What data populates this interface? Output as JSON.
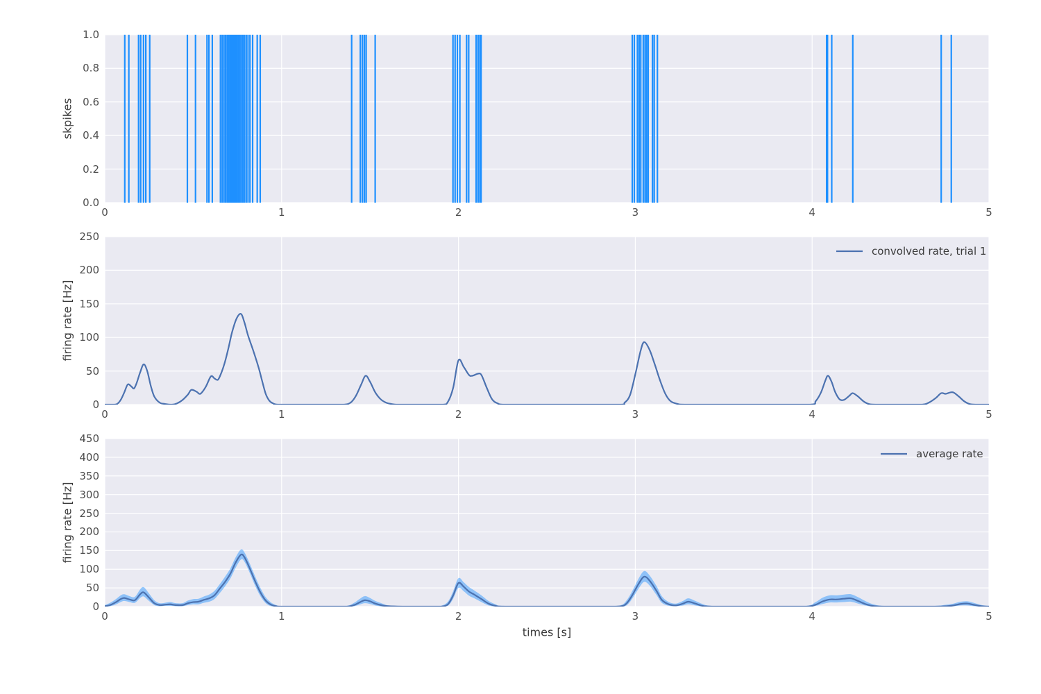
{
  "figure": {
    "background": "#ffffff",
    "axes_background": "#eaeaf2",
    "grid_color": "#ffffff",
    "tick_label_color": "#4d4d4d",
    "axis_label_color": "#3b3b3b",
    "legend_text_color": "#3b3b3b"
  },
  "chart_data": [
    {
      "id": "spike_raster",
      "type": "scatter",
      "mark": "event-vlines",
      "title": "",
      "xlabel": "",
      "ylabel": "skpikes",
      "xlim": [
        0,
        5
      ],
      "ylim": [
        0.0,
        1.0
      ],
      "xticks": [
        "0",
        "1",
        "2",
        "3",
        "4",
        "5"
      ],
      "yticks": [
        "0.0",
        "0.2",
        "0.4",
        "0.6",
        "0.8",
        "1.0"
      ],
      "grid": true,
      "line_color": "#1e90ff",
      "spike_times": [
        0.113,
        0.136,
        0.191,
        0.203,
        0.219,
        0.232,
        0.254,
        0.467,
        0.513,
        0.578,
        0.589,
        0.608,
        0.654,
        0.664,
        0.674,
        0.683,
        0.692,
        0.7,
        0.708,
        0.716,
        0.724,
        0.732,
        0.74,
        0.748,
        0.756,
        0.764,
        0.772,
        0.781,
        0.79,
        0.8,
        0.81,
        0.821,
        0.836,
        0.862,
        0.879,
        1.396,
        1.445,
        1.457,
        1.468,
        1.478,
        1.529,
        1.969,
        1.981,
        1.994,
        2.008,
        2.046,
        2.058,
        2.1,
        2.111,
        2.121,
        2.128,
        2.983,
        2.995,
        3.012,
        3.022,
        3.031,
        3.045,
        3.055,
        3.064,
        3.073,
        3.097,
        3.107,
        3.125,
        4.082,
        4.087,
        4.111,
        4.23,
        4.73,
        4.787
      ]
    },
    {
      "id": "convolved_rate_trial1",
      "type": "line",
      "title": "",
      "xlabel": "",
      "ylabel": "firing rate [Hz]",
      "xlim": [
        0,
        5
      ],
      "ylim": [
        0,
        250
      ],
      "xticks": [
        "0",
        "1",
        "2",
        "3",
        "4",
        "5"
      ],
      "yticks": [
        "0",
        "50",
        "100",
        "150",
        "200",
        "250"
      ],
      "grid": true,
      "legend": {
        "label": "convolved rate, trial 1",
        "position": "upper right"
      },
      "line_color": "#4c72b0",
      "points": [
        [
          0,
          0
        ],
        [
          0.05,
          0
        ],
        [
          0.07,
          1
        ],
        [
          0.09,
          7
        ],
        [
          0.11,
          18
        ],
        [
          0.13,
          30
        ],
        [
          0.15,
          27
        ],
        [
          0.165,
          24
        ],
        [
          0.18,
          32
        ],
        [
          0.2,
          48
        ],
        [
          0.22,
          60
        ],
        [
          0.24,
          50
        ],
        [
          0.26,
          28
        ],
        [
          0.28,
          12
        ],
        [
          0.31,
          3
        ],
        [
          0.34,
          1
        ],
        [
          0.38,
          0
        ],
        [
          0.41,
          2
        ],
        [
          0.44,
          7
        ],
        [
          0.47,
          15
        ],
        [
          0.49,
          22
        ],
        [
          0.52,
          19
        ],
        [
          0.54,
          16
        ],
        [
          0.57,
          26
        ],
        [
          0.6,
          42
        ],
        [
          0.62,
          39
        ],
        [
          0.64,
          37
        ],
        [
          0.66,
          48
        ],
        [
          0.68,
          64
        ],
        [
          0.7,
          85
        ],
        [
          0.72,
          108
        ],
        [
          0.745,
          128
        ],
        [
          0.77,
          135
        ],
        [
          0.79,
          122
        ],
        [
          0.81,
          103
        ],
        [
          0.84,
          80
        ],
        [
          0.87,
          55
        ],
        [
          0.89,
          35
        ],
        [
          0.91,
          16
        ],
        [
          0.93,
          6
        ],
        [
          0.95,
          2
        ],
        [
          0.98,
          0
        ],
        [
          1.1,
          0
        ],
        [
          1.25,
          0
        ],
        [
          1.35,
          0
        ],
        [
          1.39,
          3
        ],
        [
          1.42,
          13
        ],
        [
          1.45,
          30
        ],
        [
          1.475,
          43
        ],
        [
          1.5,
          34
        ],
        [
          1.53,
          18
        ],
        [
          1.56,
          8
        ],
        [
          1.59,
          3
        ],
        [
          1.62,
          1
        ],
        [
          1.66,
          0
        ],
        [
          1.78,
          0
        ],
        [
          1.91,
          0
        ],
        [
          1.94,
          4
        ],
        [
          1.97,
          25
        ],
        [
          2.0,
          66
        ],
        [
          2.03,
          56
        ],
        [
          2.06,
          44
        ],
        [
          2.08,
          43
        ],
        [
          2.11,
          46
        ],
        [
          2.13,
          44
        ],
        [
          2.16,
          25
        ],
        [
          2.19,
          8
        ],
        [
          2.22,
          2
        ],
        [
          2.26,
          0
        ],
        [
          2.45,
          0
        ],
        [
          2.65,
          0
        ],
        [
          2.91,
          0
        ],
        [
          2.94,
          3
        ],
        [
          2.97,
          14
        ],
        [
          3.0,
          45
        ],
        [
          3.03,
          80
        ],
        [
          3.05,
          93
        ],
        [
          3.08,
          82
        ],
        [
          3.11,
          60
        ],
        [
          3.14,
          36
        ],
        [
          3.17,
          16
        ],
        [
          3.2,
          5
        ],
        [
          3.24,
          1
        ],
        [
          3.28,
          0
        ],
        [
          3.5,
          0
        ],
        [
          3.75,
          0
        ],
        [
          3.99,
          0
        ],
        [
          4.02,
          5
        ],
        [
          4.05,
          18
        ],
        [
          4.075,
          36
        ],
        [
          4.09,
          43
        ],
        [
          4.11,
          34
        ],
        [
          4.13,
          19
        ],
        [
          4.155,
          8
        ],
        [
          4.18,
          7
        ],
        [
          4.21,
          13
        ],
        [
          4.23,
          17
        ],
        [
          4.26,
          12
        ],
        [
          4.29,
          5
        ],
        [
          4.32,
          1
        ],
        [
          4.36,
          0
        ],
        [
          4.5,
          0
        ],
        [
          4.62,
          0
        ],
        [
          4.66,
          3
        ],
        [
          4.7,
          10
        ],
        [
          4.73,
          17
        ],
        [
          4.755,
          16
        ],
        [
          4.78,
          18
        ],
        [
          4.8,
          18
        ],
        [
          4.83,
          12
        ],
        [
          4.86,
          5
        ],
        [
          4.89,
          1
        ],
        [
          4.93,
          0
        ],
        [
          5,
          0
        ]
      ]
    },
    {
      "id": "average_rate",
      "type": "area",
      "title": "",
      "xlabel": "times [s]",
      "ylabel": "firing rate [Hz]",
      "xlim": [
        0,
        5
      ],
      "ylim": [
        0,
        450
      ],
      "xticks": [
        "0",
        "1",
        "2",
        "3",
        "4",
        "5"
      ],
      "yticks": [
        "0",
        "50",
        "100",
        "150",
        "200",
        "250",
        "300",
        "350",
        "400",
        "450"
      ],
      "grid": true,
      "legend": {
        "label": "average rate",
        "position": "upper right"
      },
      "line_color": "#4c72b0",
      "band_color": "rgba(30,144,255,0.45)",
      "points_format": [
        "t",
        "mean",
        "lower",
        "upper"
      ],
      "points": [
        [
          0,
          1,
          0,
          4
        ],
        [
          0.03,
          4,
          1,
          10
        ],
        [
          0.06,
          11,
          5,
          19
        ],
        [
          0.09,
          20,
          12,
          30
        ],
        [
          0.11,
          23,
          15,
          33
        ],
        [
          0.14,
          19,
          12,
          28
        ],
        [
          0.17,
          17,
          10,
          26
        ],
        [
          0.2,
          33,
          23,
          46
        ],
        [
          0.22,
          38,
          27,
          52
        ],
        [
          0.25,
          24,
          15,
          35
        ],
        [
          0.28,
          9,
          4,
          17
        ],
        [
          0.31,
          4,
          1,
          9
        ],
        [
          0.34,
          5,
          2,
          10
        ],
        [
          0.37,
          6,
          2,
          12
        ],
        [
          0.4,
          4,
          1,
          9
        ],
        [
          0.44,
          4,
          1,
          9
        ],
        [
          0.47,
          9,
          4,
          16
        ],
        [
          0.5,
          12,
          6,
          20
        ],
        [
          0.53,
          13,
          6,
          21
        ],
        [
          0.56,
          18,
          10,
          27
        ],
        [
          0.59,
          22,
          13,
          32
        ],
        [
          0.62,
          30,
          20,
          42
        ],
        [
          0.65,
          48,
          36,
          60
        ],
        [
          0.68,
          66,
          54,
          80
        ],
        [
          0.71,
          88,
          75,
          102
        ],
        [
          0.74,
          118,
          104,
          132
        ],
        [
          0.77,
          139,
          126,
          153
        ],
        [
          0.79,
          132,
          120,
          145
        ],
        [
          0.82,
          102,
          90,
          115
        ],
        [
          0.85,
          68,
          56,
          81
        ],
        [
          0.88,
          38,
          28,
          50
        ],
        [
          0.91,
          16,
          9,
          25
        ],
        [
          0.94,
          5,
          1,
          11
        ],
        [
          0.97,
          1,
          0,
          4
        ],
        [
          1.0,
          0,
          0,
          1
        ],
        [
          1.15,
          0,
          0,
          1
        ],
        [
          1.3,
          0,
          0,
          1
        ],
        [
          1.37,
          0,
          0,
          2
        ],
        [
          1.41,
          4,
          1,
          10
        ],
        [
          1.44,
          11,
          5,
          20
        ],
        [
          1.47,
          17,
          9,
          28
        ],
        [
          1.5,
          14,
          7,
          23
        ],
        [
          1.53,
          8,
          3,
          15
        ],
        [
          1.57,
          3,
          0,
          8
        ],
        [
          1.61,
          1,
          0,
          3
        ],
        [
          1.72,
          0,
          0,
          1
        ],
        [
          1.84,
          0,
          0,
          1
        ],
        [
          1.9,
          0,
          0,
          2
        ],
        [
          1.94,
          6,
          2,
          13
        ],
        [
          1.97,
          30,
          21,
          41
        ],
        [
          2.0,
          63,
          50,
          76
        ],
        [
          2.03,
          53,
          41,
          65
        ],
        [
          2.06,
          40,
          29,
          52
        ],
        [
          2.09,
          32,
          22,
          43
        ],
        [
          2.13,
          20,
          12,
          30
        ],
        [
          2.17,
          8,
          3,
          15
        ],
        [
          2.21,
          2,
          0,
          6
        ],
        [
          2.25,
          0,
          0,
          2
        ],
        [
          2.45,
          0,
          0,
          1
        ],
        [
          2.65,
          0,
          0,
          1
        ],
        [
          2.85,
          0,
          0,
          1
        ],
        [
          2.92,
          1,
          0,
          4
        ],
        [
          2.95,
          8,
          3,
          16
        ],
        [
          2.98,
          28,
          19,
          39
        ],
        [
          3.02,
          62,
          49,
          76
        ],
        [
          3.05,
          80,
          66,
          95
        ],
        [
          3.08,
          70,
          57,
          84
        ],
        [
          3.12,
          42,
          31,
          55
        ],
        [
          3.15,
          18,
          10,
          28
        ],
        [
          3.19,
          6,
          2,
          12
        ],
        [
          3.23,
          3,
          1,
          8
        ],
        [
          3.27,
          8,
          3,
          15
        ],
        [
          3.3,
          13,
          6,
          22
        ],
        [
          3.34,
          8,
          3,
          15
        ],
        [
          3.38,
          2,
          0,
          7
        ],
        [
          3.43,
          0,
          0,
          2
        ],
        [
          3.6,
          0,
          0,
          1
        ],
        [
          3.8,
          0,
          0,
          1
        ],
        [
          3.97,
          0,
          0,
          2
        ],
        [
          4.02,
          5,
          2,
          12
        ],
        [
          4.06,
          14,
          7,
          24
        ],
        [
          4.1,
          19,
          11,
          30
        ],
        [
          4.14,
          19,
          11,
          30
        ],
        [
          4.18,
          21,
          12,
          32
        ],
        [
          4.22,
          22,
          13,
          33
        ],
        [
          4.26,
          15,
          8,
          25
        ],
        [
          4.3,
          7,
          3,
          15
        ],
        [
          4.34,
          2,
          0,
          7
        ],
        [
          4.4,
          0,
          0,
          2
        ],
        [
          4.55,
          0,
          0,
          1
        ],
        [
          4.7,
          0,
          0,
          2
        ],
        [
          4.76,
          1,
          0,
          5
        ],
        [
          4.8,
          3,
          1,
          8
        ],
        [
          4.84,
          7,
          3,
          13
        ],
        [
          4.88,
          8,
          3,
          14
        ],
        [
          4.92,
          4,
          1,
          9
        ],
        [
          4.96,
          1,
          0,
          4
        ],
        [
          5,
          0,
          0,
          2
        ]
      ]
    }
  ]
}
